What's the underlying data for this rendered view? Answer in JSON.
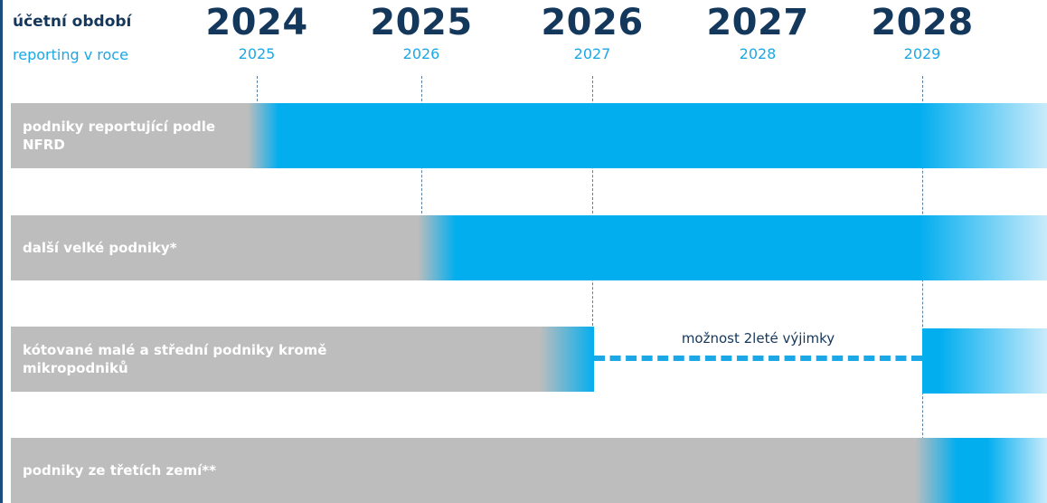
{
  "header": {
    "period_label": "účetní období",
    "reporting_label": "reporting v roce"
  },
  "timeline": {
    "periods": [
      "2024",
      "2025",
      "2026",
      "2027",
      "2028"
    ],
    "reporting_years": [
      "2025",
      "2026",
      "2027",
      "2028",
      "2029"
    ]
  },
  "rows": [
    {
      "label": "podniky reportující podle NFRD",
      "starts_period": "2024"
    },
    {
      "label": "další velké podniky*",
      "starts_period": "2025"
    },
    {
      "label": "kótované malé a střední podniky kromě mikropodniků",
      "starts_period": "2026",
      "resumes_period": "2028"
    },
    {
      "label": "podniky ze třetích zemí**",
      "starts_period": "2028"
    }
  ],
  "exemption_note": "možnost 2leté výjimky",
  "colors": {
    "navy": "#14375c",
    "accent_blue": "#03aeef",
    "light_blue": "#1ca7e6",
    "gray": "#bdbdbd"
  }
}
